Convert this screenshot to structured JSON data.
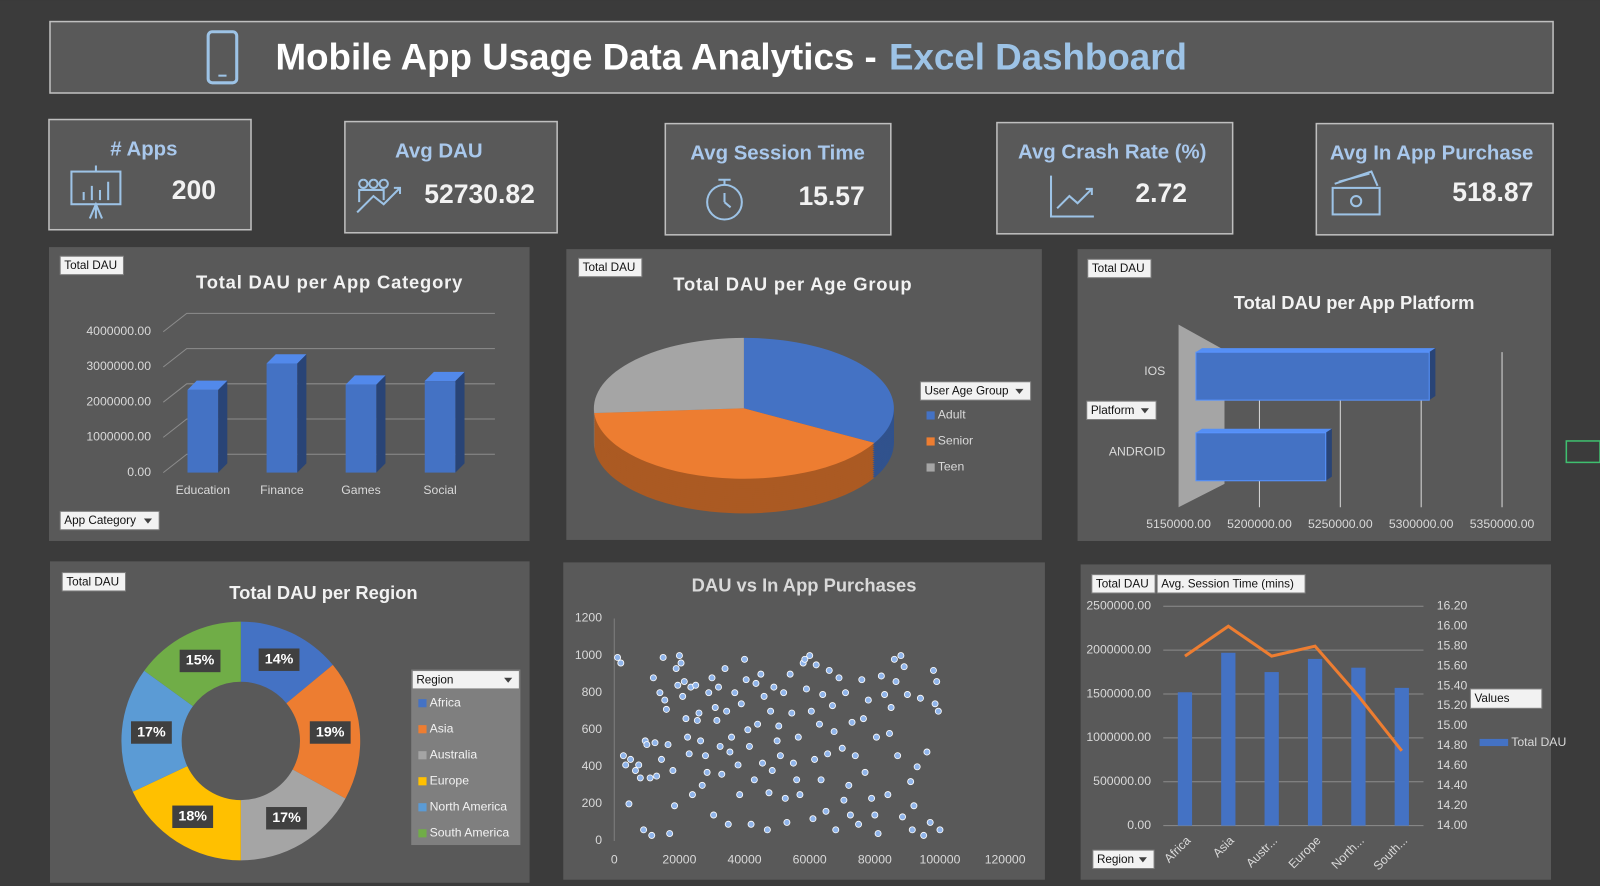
{
  "header": {
    "title": "Mobile App Usage Data Analytics -",
    "title_highlight": "Excel Dashboard"
  },
  "kpis": [
    {
      "label": "# Apps",
      "value": 200
    },
    {
      "label": "Avg DAU",
      "value": 52730.82
    },
    {
      "label": "Avg Session Time",
      "value": 15.57
    },
    {
      "label": "Avg Crash Rate (%)",
      "value": 2.72
    },
    {
      "label": "Avg In App Purchase",
      "value": 518.87
    }
  ],
  "chart_data": [
    {
      "type": "bar",
      "title": "Total DAU per App Category",
      "filter_buttons": [
        "Total DAU",
        "App Category"
      ],
      "categories": [
        "Education",
        "Finance",
        "Games",
        "Social"
      ],
      "values": [
        2350000,
        3100000,
        2500000,
        2600000
      ],
      "color": "#4472c4",
      "ylim": [
        0,
        4000000
      ],
      "yticks": [
        {
          "value": 0,
          "label": "0.00"
        },
        {
          "value": 1000000,
          "label": "1000000.00"
        },
        {
          "value": 2000000,
          "label": "2000000.00"
        },
        {
          "value": 3000000,
          "label": "3000000.00"
        },
        {
          "value": 4000000,
          "label": "4000000.00"
        }
      ],
      "grid": true
    },
    {
      "type": "pie",
      "title": "Total DAU per Age Group",
      "filter_buttons": [
        "Total DAU"
      ],
      "legend_title": "User Age Group",
      "categories": [
        "Adult",
        "Senior",
        "Teen"
      ],
      "values": [
        3500000,
        4300000,
        2750000
      ],
      "colors": [
        "#4472c4",
        "#ed7d31",
        "#a5a5a5"
      ]
    },
    {
      "type": "hbar",
      "title": "Total DAU per App Platform",
      "filter_buttons": [
        "Total DAU",
        "Platform"
      ],
      "categories": [
        "IOS",
        "ANDROID"
      ],
      "values": [
        5305000,
        5241000
      ],
      "color": "#4472c4",
      "xlim": [
        5150000,
        5350000
      ],
      "xticks": [
        {
          "value": 5150000,
          "label": "5150000.00"
        },
        {
          "value": 5200000,
          "label": "5200000.00"
        },
        {
          "value": 5250000,
          "label": "5250000.00"
        },
        {
          "value": 5300000,
          "label": "5300000.00"
        },
        {
          "value": 5350000,
          "label": "5350000.00"
        }
      ],
      "grid": true
    },
    {
      "type": "donut",
      "title": "Total DAU per Region",
      "filter_buttons": [
        "Total DAU"
      ],
      "legend_title": "Region",
      "categories": [
        "Africa",
        "Asia",
        "Australia",
        "Europe",
        "North America",
        "South America"
      ],
      "values": [
        14,
        19,
        17,
        18,
        17,
        15
      ],
      "value_labels": [
        "14%",
        "19%",
        "17%",
        "18%",
        "17%",
        "15%"
      ],
      "colors": [
        "#4472c4",
        "#ed7d31",
        "#a5a5a5",
        "#ffc000",
        "#5b9bd5",
        "#70ad47"
      ]
    },
    {
      "type": "scatter",
      "title": "DAU vs In App Purchases",
      "color": "#8fb4ea",
      "x": [
        1000,
        2000,
        2800,
        3500,
        4500,
        5000,
        6500,
        7500,
        8000,
        9000,
        9500,
        10000,
        11000,
        11500,
        12000,
        12500,
        13000,
        14000,
        14500,
        15000,
        15500,
        16000,
        16500,
        17000,
        18000,
        18500,
        19000,
        19500,
        20000,
        20500,
        21000,
        21500,
        22000,
        22500,
        23000,
        23500,
        24000,
        25000,
        25500,
        26000,
        26500,
        27000,
        28000,
        28500,
        29000,
        30000,
        30500,
        31000,
        31500,
        32000,
        32500,
        33000,
        34000,
        34500,
        35000,
        35500,
        36000,
        37000,
        38000,
        38500,
        39000,
        40000,
        40500,
        41000,
        41500,
        42000,
        43000,
        43500,
        44000,
        45000,
        45500,
        46000,
        47000,
        47500,
        48000,
        48500,
        49000,
        50000,
        50500,
        51000,
        52000,
        52500,
        53000,
        54000,
        54500,
        55000,
        56000,
        56500,
        57000,
        58000,
        58500,
        59000,
        60000,
        60500,
        61000,
        61500,
        62000,
        63000,
        63500,
        64000,
        65000,
        65500,
        66000,
        67000,
        67500,
        68000,
        69000,
        70000,
        70500,
        71000,
        72000,
        72500,
        73000,
        74000,
        75000,
        76000,
        76500,
        77000,
        78000,
        79000,
        80000,
        80500,
        81000,
        82000,
        83000,
        84000,
        84500,
        85000,
        86000,
        86500,
        87000,
        88000,
        88500,
        89000,
        90000,
        91000,
        91500,
        92000,
        93000,
        94000,
        95000,
        96000,
        97000,
        98000,
        98500,
        99000,
        99500,
        100000
      ],
      "values": [
        990,
        960,
        460,
        410,
        200,
        440,
        380,
        410,
        340,
        60,
        540,
        520,
        340,
        30,
        880,
        530,
        350,
        800,
        440,
        990,
        760,
        710,
        520,
        40,
        380,
        190,
        930,
        840,
        1000,
        960,
        780,
        860,
        660,
        560,
        470,
        830,
        250,
        840,
        650,
        690,
        540,
        300,
        460,
        370,
        800,
        880,
        140,
        720,
        650,
        830,
        510,
        360,
        930,
        700,
        90,
        480,
        560,
        800,
        410,
        250,
        740,
        980,
        870,
        600,
        510,
        90,
        330,
        850,
        630,
        900,
        420,
        780,
        60,
        260,
        700,
        380,
        830,
        540,
        620,
        460,
        800,
        230,
        100,
        900,
        690,
        420,
        330,
        560,
        250,
        960,
        980,
        820,
        1000,
        700,
        120,
        440,
        950,
        630,
        330,
        790,
        160,
        470,
        920,
        730,
        590,
        60,
        880,
        500,
        220,
        800,
        300,
        140,
        640,
        460,
        90,
        870,
        660,
        370,
        760,
        230,
        140,
        560,
        40,
        890,
        790,
        250,
        580,
        720,
        980,
        860,
        460,
        1000,
        130,
        940,
        790,
        320,
        60,
        190,
        400,
        770,
        30,
        480,
        100,
        920,
        740,
        860,
        700,
        60
      ],
      "xlim": [
        0,
        120000
      ],
      "xticks": [
        0,
        20000,
        40000,
        60000,
        80000,
        100000,
        120000
      ],
      "ylim": [
        0,
        1200
      ],
      "yticks": [
        0,
        200,
        400,
        600,
        800,
        1000,
        1200
      ]
    },
    {
      "type": "combo",
      "filter_buttons": [
        "Total DAU",
        "Avg. Session Time (mins)",
        "Region"
      ],
      "legend_title": "Values",
      "categories": [
        "Africa",
        "Asia",
        "Austr...",
        "Europe",
        "North...",
        "South..."
      ],
      "series": [
        {
          "name": "Total DAU",
          "color": "#4472c4",
          "values": [
            1520000,
            1970000,
            1750000,
            1900000,
            1800000,
            1570000
          ]
        },
        {
          "axis": "y2",
          "color": "#ed7d31",
          "values": [
            15.7,
            16.0,
            15.7,
            15.8,
            15.3,
            14.75
          ]
        }
      ],
      "ylim": [
        0,
        2500000
      ],
      "yticks": [
        {
          "value": 0,
          "label": "0.00"
        },
        {
          "value": 500000,
          "label": "500000.00"
        },
        {
          "value": 1000000,
          "label": "1000000.00"
        },
        {
          "value": 1500000,
          "label": "1500000.00"
        },
        {
          "value": 2000000,
          "label": "2000000.00"
        },
        {
          "value": 2500000,
          "label": "2500000.00"
        }
      ],
      "y2lim": [
        14,
        16.2
      ],
      "y2ticks": [
        {
          "value": 14,
          "label": "14.00"
        },
        {
          "value": 14.2,
          "label": "14.20"
        },
        {
          "value": 14.4,
          "label": "14.40"
        },
        {
          "value": 14.6,
          "label": "14.60"
        },
        {
          "value": 14.8,
          "label": "14.80"
        },
        {
          "value": 15,
          "label": "15.00"
        },
        {
          "value": 15.2,
          "label": "15.20"
        },
        {
          "value": 15.4,
          "label": "15.40"
        },
        {
          "value": 15.6,
          "label": "15.60"
        },
        {
          "value": 15.8,
          "label": "15.80"
        },
        {
          "value": 16,
          "label": "16.00"
        },
        {
          "value": 16.2,
          "label": "16.20"
        }
      ],
      "grid": true
    }
  ]
}
